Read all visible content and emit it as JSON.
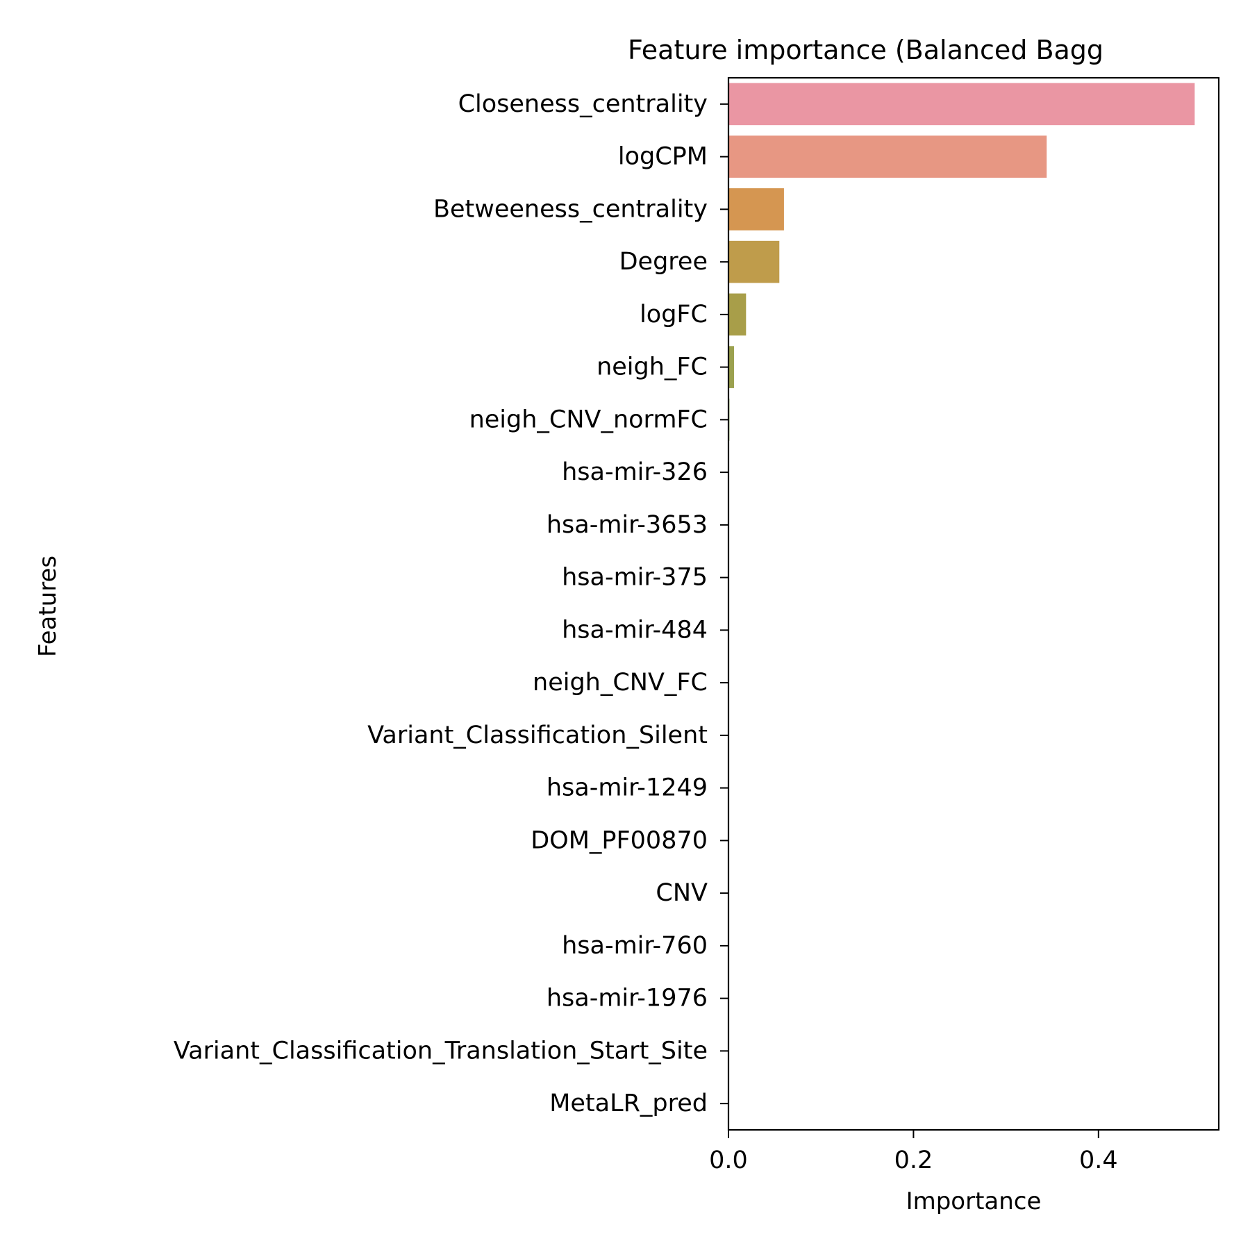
{
  "chart_data": {
    "type": "bar",
    "orientation": "horizontal",
    "title": "Feature importance (Balanced Bagg",
    "xlabel": "Importance",
    "ylabel": "Features",
    "xlim": [
      0,
      0.53
    ],
    "xticks": [
      0.0,
      0.2,
      0.4
    ],
    "xtick_labels": [
      "0.0",
      "0.2",
      "0.4"
    ],
    "grid": false,
    "categories": [
      "Closeness_centrality",
      "logCPM",
      "Betweeness_centrality",
      "Degree",
      "logFC",
      "neigh_FC",
      "neigh_CNV_normFC",
      "hsa-mir-326",
      "hsa-mir-3653",
      "hsa-mir-375",
      "hsa-mir-484",
      "neigh_CNV_FC",
      "Variant_Classification_Silent",
      "hsa-mir-1249",
      "DOM_PF00870",
      "CNV",
      "hsa-mir-760",
      "hsa-mir-1976",
      "Variant_Classification_Translation_Start_Site",
      "MetaLR_pred"
    ],
    "values": [
      0.504,
      0.344,
      0.06,
      0.055,
      0.019,
      0.006,
      0.001,
      0,
      0,
      0,
      0,
      0,
      0,
      0,
      0,
      0,
      0,
      0,
      0,
      0
    ],
    "colors": [
      "#ea96a3",
      "#e79783",
      "#d59651",
      "#bf9c4b",
      "#a89e49",
      "#9ba14f",
      "#80a54a",
      "#6fab4c",
      "#4fb07a",
      "#4db091",
      "#4fae9f",
      "#50aca9",
      "#52abb3",
      "#55aabe",
      "#5aa8cf",
      "#74a3e3",
      "#9c98ea",
      "#c28aea",
      "#e08ae0",
      "#ec8ec7"
    ]
  }
}
